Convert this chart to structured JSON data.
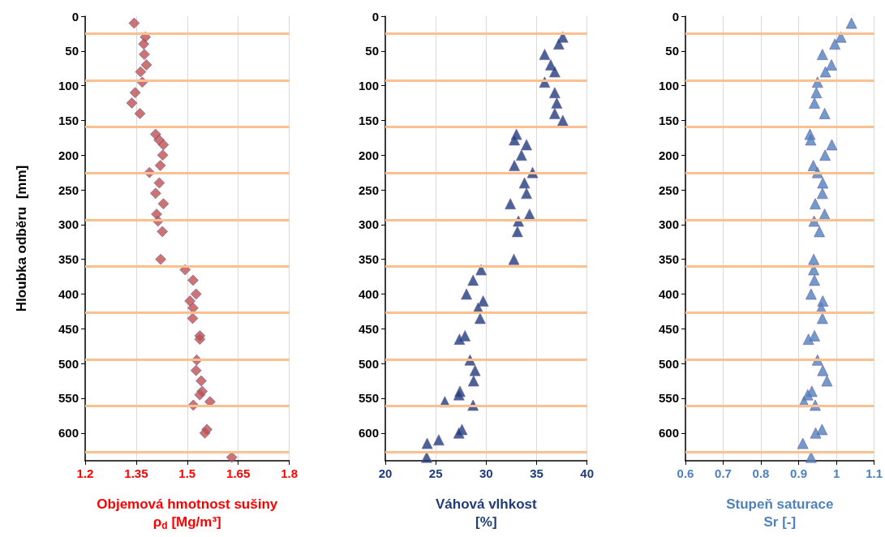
{
  "chart_data": [
    {
      "type": "scatter",
      "xlabel": "Objemová hmotnost sušiny\nρ$_{d}$ [Mg/m³]",
      "ylabel": "Hloubka odběru  [mm]",
      "marker": "diamond",
      "grid": "x",
      "xlim": [
        1.2,
        1.8
      ],
      "xticks": [
        1.2,
        1.35,
        1.5,
        1.65,
        1.8
      ],
      "ylim": [
        640,
        0
      ],
      "yticks": [
        0,
        50,
        100,
        150,
        200,
        250,
        300,
        350,
        400,
        450,
        500,
        550,
        600
      ],
      "series": [
        {
          "color": "#c0504d",
          "x": [
            1.344,
            1.377,
            1.372,
            1.374,
            1.38,
            1.363,
            1.368,
            1.347,
            1.337,
            1.361,
            1.407,
            1.417,
            1.43,
            1.428,
            1.421,
            1.389,
            1.418,
            1.407,
            1.43,
            1.41,
            1.414,
            1.427,
            1.422,
            1.494,
            1.517,
            1.526,
            1.508,
            1.517,
            1.516,
            1.537,
            1.537,
            1.528,
            1.526,
            1.541,
            1.544,
            1.537,
            1.567,
            1.518,
            1.558,
            1.552,
            1.631
          ],
          "values": [
            10,
            30,
            40,
            55,
            70,
            80,
            95,
            110,
            125,
            140,
            170,
            178,
            185,
            200,
            215,
            225,
            240,
            255,
            270,
            285,
            295,
            310,
            350,
            365,
            380,
            400,
            410,
            420,
            435,
            460,
            465,
            495,
            510,
            525,
            540,
            545,
            555,
            560,
            595,
            600,
            635
          ]
        }
      ],
      "ref_lines": [
        {
          "axis": "y",
          "value": 25,
          "color": "#fac090"
        },
        {
          "axis": "y",
          "value": 92,
          "color": "#fac090"
        },
        {
          "axis": "y",
          "value": 159,
          "color": "#fac090"
        },
        {
          "axis": "y",
          "value": 226,
          "color": "#fac090"
        },
        {
          "axis": "y",
          "value": 293,
          "color": "#fac090"
        },
        {
          "axis": "y",
          "value": 360,
          "color": "#fac090"
        },
        {
          "axis": "y",
          "value": 427,
          "color": "#fac090"
        },
        {
          "axis": "y",
          "value": 494,
          "color": "#fac090"
        },
        {
          "axis": "y",
          "value": 561,
          "color": "#fac090"
        },
        {
          "axis": "y",
          "value": 628,
          "color": "#fac090"
        }
      ]
    },
    {
      "type": "scatter",
      "xlabel": "Váhová vlhkost\n[%]",
      "marker": "triangle",
      "grid": "x",
      "xlim": [
        20,
        40
      ],
      "xticks": [
        20,
        25,
        30,
        35,
        40
      ],
      "ylim": [
        640,
        0
      ],
      "yticks": [
        0,
        50,
        100,
        150,
        200,
        250,
        300,
        350,
        400,
        450,
        500,
        550,
        600
      ],
      "series": [
        {
          "color": "#1f3c7a",
          "x": [
            37.6,
            37.2,
            35.8,
            36.4,
            36.8,
            35.8,
            36.8,
            37.0,
            36.8,
            37.6,
            33.0,
            32.8,
            34.0,
            33.5,
            32.8,
            34.6,
            33.8,
            34.0,
            32.4,
            34.3,
            33.2,
            33.1,
            32.75,
            29.5,
            28.7,
            28.05,
            29.7,
            29.2,
            29.4,
            27.9,
            27.35,
            28.4,
            28.9,
            28.75,
            27.4,
            27.3,
            25.9,
            28.7,
            27.6,
            27.3,
            25.3,
            24.15,
            24.1
          ],
          "values": [
            30,
            40,
            55,
            70,
            80,
            95,
            110,
            125,
            140,
            150,
            170,
            178,
            185,
            200,
            215,
            225,
            240,
            255,
            270,
            285,
            295,
            310,
            350,
            365,
            380,
            400,
            410,
            420,
            435,
            460,
            465,
            495,
            510,
            525,
            540,
            545,
            555,
            560,
            595,
            600,
            610,
            615,
            635
          ]
        }
      ],
      "ref_lines": [
        {
          "axis": "y",
          "value": 25,
          "color": "#fac090"
        },
        {
          "axis": "y",
          "value": 92,
          "color": "#fac090"
        },
        {
          "axis": "y",
          "value": 159,
          "color": "#fac090"
        },
        {
          "axis": "y",
          "value": 226,
          "color": "#fac090"
        },
        {
          "axis": "y",
          "value": 293,
          "color": "#fac090"
        },
        {
          "axis": "y",
          "value": 360,
          "color": "#fac090"
        },
        {
          "axis": "y",
          "value": 427,
          "color": "#fac090"
        },
        {
          "axis": "y",
          "value": 494,
          "color": "#fac090"
        },
        {
          "axis": "y",
          "value": 561,
          "color": "#fac090"
        },
        {
          "axis": "y",
          "value": 628,
          "color": "#fac090"
        }
      ]
    },
    {
      "type": "scatter",
      "xlabel": "Stupeň saturace\nSr [-]",
      "marker": "triangle",
      "grid": "x",
      "xlim": [
        0.6,
        1.1
      ],
      "xticks": [
        0.6,
        0.7,
        0.8,
        0.9,
        1,
        1.1
      ],
      "ylim": [
        640,
        0
      ],
      "yticks": [
        0,
        50,
        100,
        150,
        200,
        250,
        300,
        350,
        400,
        450,
        500,
        550,
        600
      ],
      "series": [
        {
          "color": "#4f81bd",
          "x": [
            1.04,
            1.012,
            0.996,
            0.963,
            0.987,
            0.971,
            0.95,
            0.947,
            0.942,
            0.969,
            0.93,
            0.932,
            0.988,
            0.97,
            0.939,
            0.95,
            0.964,
            0.963,
            0.944,
            0.969,
            0.941,
            0.955,
            0.94,
            0.94,
            0.942,
            0.933,
            0.964,
            0.96,
            0.963,
            0.942,
            0.926,
            0.95,
            0.964,
            0.975,
            0.935,
            0.924,
            0.914,
            0.944,
            0.962,
            0.945,
            0.911,
            0.933
          ],
          "values": [
            10,
            30,
            40,
            55,
            70,
            80,
            95,
            110,
            125,
            140,
            170,
            178,
            185,
            200,
            215,
            225,
            240,
            255,
            270,
            285,
            295,
            310,
            350,
            365,
            380,
            400,
            410,
            420,
            435,
            460,
            465,
            495,
            510,
            525,
            540,
            545,
            555,
            560,
            595,
            600,
            615,
            635
          ]
        }
      ],
      "ref_lines": [
        {
          "axis": "y",
          "value": 25,
          "color": "#fac090"
        },
        {
          "axis": "y",
          "value": 92,
          "color": "#fac090"
        },
        {
          "axis": "y",
          "value": 159,
          "color": "#fac090"
        },
        {
          "axis": "y",
          "value": 226,
          "color": "#fac090"
        },
        {
          "axis": "y",
          "value": 293,
          "color": "#fac090"
        },
        {
          "axis": "y",
          "value": 360,
          "color": "#fac090"
        },
        {
          "axis": "y",
          "value": 427,
          "color": "#fac090"
        },
        {
          "axis": "y",
          "value": 494,
          "color": "#fac090"
        },
        {
          "axis": "y",
          "value": 561,
          "color": "#fac090"
        },
        {
          "axis": "y",
          "value": 628,
          "color": "#fac090"
        }
      ]
    }
  ]
}
